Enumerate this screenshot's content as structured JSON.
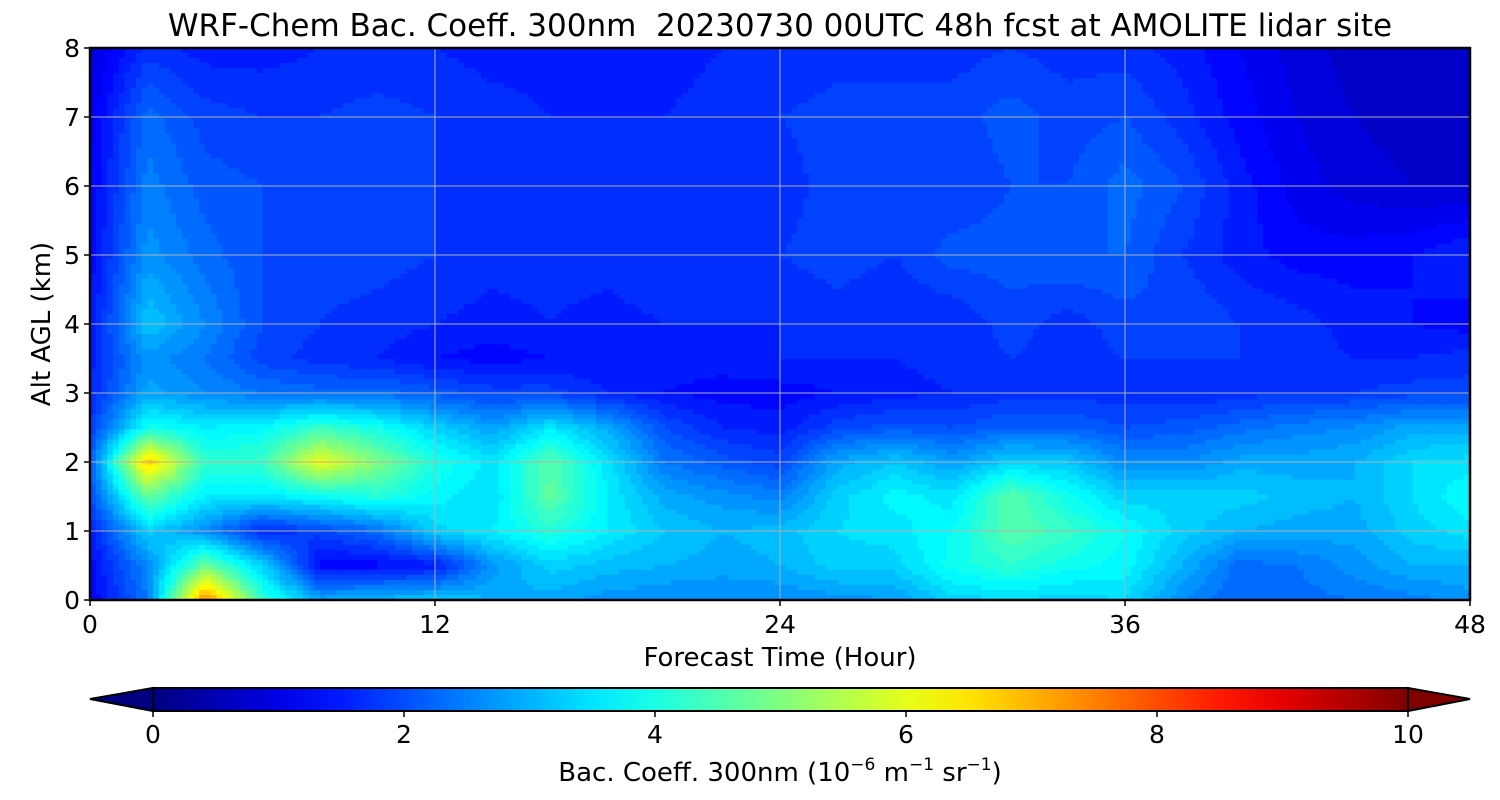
{
  "chart_data": {
    "type": "heatmap",
    "title": "WRF-Chem Bac. Coeff. 300nm  20230730 00UTC 48h fcst at AMOLITE lidar site",
    "xlabel": "Forecast Time (Hour)",
    "ylabel": "Alt AGL (km)",
    "xlim": [
      0,
      48
    ],
    "ylim": [
      0,
      8
    ],
    "xticks": [
      0,
      12,
      24,
      36,
      48
    ],
    "yticks": [
      0,
      1,
      2,
      3,
      4,
      5,
      6,
      7,
      8
    ],
    "grid": true,
    "colormap": "jet",
    "colorbar": {
      "label_main": "Bac. Coeff. 300nm  (10",
      "label_exp1": "−6",
      "label_mid": " m",
      "label_exp2": "−1",
      "label_mid2": " sr",
      "label_exp3": "−1",
      "label_end": ")",
      "range": [
        0,
        10
      ],
      "ticks": [
        0,
        2,
        4,
        6,
        8,
        10
      ],
      "extend": "both",
      "orientation": "horizontal"
    },
    "x": [
      0,
      2,
      4,
      6,
      8,
      10,
      12,
      14,
      16,
      18,
      20,
      22,
      24,
      26,
      28,
      30,
      32,
      34,
      36,
      38,
      40,
      42,
      44,
      46,
      48
    ],
    "y": [
      0,
      0.5,
      1,
      1.5,
      2,
      2.5,
      3,
      3.5,
      4,
      5,
      6,
      7,
      8
    ],
    "values": [
      [
        1.2,
        2.4,
        7.5,
        4.2,
        2.9,
        3.1,
        3.2,
        3.0,
        2.9,
        2.7,
        2.6,
        2.6,
        2.6,
        2.7,
        2.8,
        3.3,
        3.4,
        3.3,
        3.4,
        2.6,
        2.2,
        2.3,
        2.4,
        2.5,
        2.7
      ],
      [
        1.3,
        2.6,
        4.8,
        3.3,
        1.3,
        1.3,
        1.5,
        2.7,
        3.3,
        3.1,
        3.0,
        2.9,
        3.0,
        3.3,
        3.3,
        3.9,
        4.2,
        3.9,
        3.7,
        3.0,
        2.3,
        2.4,
        2.7,
        3.0,
        3.0
      ],
      [
        1.5,
        3.3,
        2.6,
        1.6,
        1.9,
        2.3,
        3.3,
        3.6,
        4.1,
        3.6,
        3.2,
        3.0,
        3.1,
        3.4,
        3.5,
        3.8,
        4.6,
        4.3,
        3.8,
        3.3,
        3.0,
        2.9,
        2.9,
        3.3,
        3.5
      ],
      [
        2.0,
        4.7,
        3.6,
        3.5,
        3.8,
        4.1,
        3.7,
        3.4,
        4.7,
        3.6,
        2.9,
        2.7,
        2.5,
        3.3,
        3.7,
        3.5,
        4.6,
        3.9,
        3.3,
        3.3,
        3.3,
        3.1,
        3.0,
        3.4,
        3.8
      ],
      [
        2.1,
        6.8,
        4.2,
        4.3,
        6.1,
        5.0,
        4.0,
        3.5,
        4.6,
        3.5,
        2.4,
        2.1,
        1.9,
        2.9,
        3.2,
        2.8,
        3.3,
        3.2,
        2.6,
        2.6,
        2.9,
        2.9,
        3.0,
        3.4,
        3.5
      ],
      [
        1.8,
        3.9,
        3.6,
        3.7,
        4.3,
        3.9,
        3.3,
        2.8,
        3.5,
        2.9,
        2.0,
        1.6,
        1.5,
        1.9,
        2.1,
        2.0,
        2.2,
        2.2,
        2.0,
        2.1,
        2.3,
        2.5,
        2.6,
        2.9,
        2.9
      ],
      [
        1.6,
        2.9,
        2.6,
        2.4,
        2.3,
        2.3,
        2.1,
        1.9,
        1.9,
        1.6,
        1.4,
        1.3,
        1.3,
        1.4,
        1.5,
        1.6,
        1.7,
        1.7,
        1.7,
        1.6,
        1.7,
        1.8,
        1.8,
        1.9,
        1.9
      ],
      [
        1.5,
        2.7,
        2.4,
        1.9,
        1.7,
        1.6,
        1.4,
        1.3,
        1.4,
        1.4,
        1.5,
        1.5,
        1.6,
        1.6,
        1.6,
        1.7,
        1.8,
        1.7,
        1.8,
        1.8,
        1.8,
        1.7,
        1.6,
        1.6,
        1.7
      ],
      [
        1.4,
        3.2,
        2.6,
        2.0,
        1.8,
        1.7,
        1.6,
        1.5,
        1.6,
        1.5,
        1.6,
        1.6,
        1.6,
        1.7,
        1.6,
        1.6,
        1.9,
        1.7,
        1.9,
        2.0,
        1.8,
        1.7,
        1.5,
        1.4,
        1.3
      ],
      [
        1.3,
        2.7,
        2.3,
        2.0,
        1.9,
        1.9,
        1.8,
        1.7,
        1.7,
        1.7,
        1.8,
        1.7,
        1.8,
        1.9,
        1.8,
        2.1,
        2.1,
        2.2,
        2.2,
        1.8,
        1.5,
        1.3,
        1.3,
        1.4,
        1.6
      ],
      [
        1.2,
        2.5,
        2.1,
        2.0,
        1.9,
        1.8,
        1.8,
        1.6,
        1.6,
        1.6,
        1.6,
        1.7,
        1.7,
        1.9,
        1.9,
        1.8,
        2.0,
        2.0,
        2.3,
        2.0,
        1.5,
        1.1,
        0.9,
        0.8,
        0.8
      ],
      [
        1.1,
        2.3,
        1.9,
        1.8,
        1.8,
        1.9,
        1.8,
        1.7,
        1.6,
        1.6,
        1.6,
        1.7,
        1.8,
        1.9,
        1.9,
        1.9,
        2.1,
        1.9,
        2.0,
        1.7,
        1.3,
        1.0,
        0.8,
        0.7,
        0.7
      ],
      [
        0.9,
        1.7,
        1.5,
        1.5,
        1.6,
        1.6,
        1.6,
        1.5,
        1.5,
        1.5,
        1.5,
        1.6,
        1.6,
        1.7,
        1.7,
        1.7,
        1.8,
        1.7,
        1.7,
        1.5,
        1.2,
        0.9,
        0.7,
        0.6,
        0.6
      ]
    ]
  }
}
